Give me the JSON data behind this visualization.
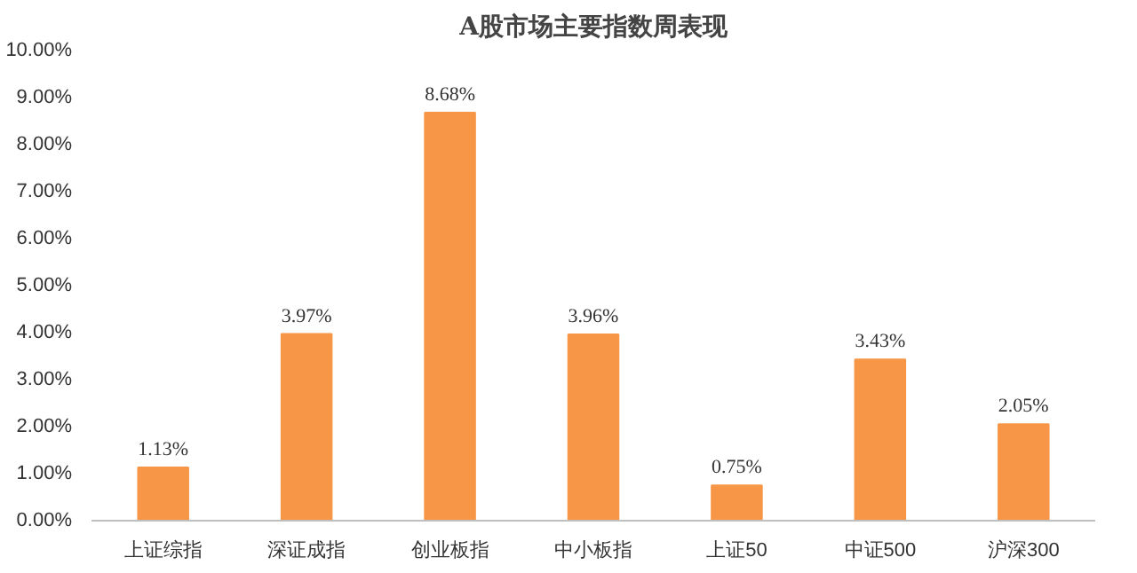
{
  "chart_data": {
    "type": "bar",
    "title": "A股市场主要指数周表现",
    "categories": [
      "上证综指",
      "深证成指",
      "创业板指",
      "中小板指",
      "上证50",
      "中证500",
      "沪深300"
    ],
    "values": [
      1.13,
      3.97,
      8.68,
      3.96,
      0.75,
      3.43,
      2.05
    ],
    "value_labels": [
      "1.13%",
      "3.97%",
      "8.68%",
      "3.96%",
      "0.75%",
      "3.43%",
      "2.05%"
    ],
    "color": "#f79646",
    "ylim": [
      0,
      10
    ],
    "yticks": [
      {
        "value": 0,
        "label": "0.00%"
      },
      {
        "value": 1,
        "label": "1.00%"
      },
      {
        "value": 2,
        "label": "2.00%"
      },
      {
        "value": 3,
        "label": "3.00%"
      },
      {
        "value": 4,
        "label": "4.00%"
      },
      {
        "value": 5,
        "label": "5.00%"
      },
      {
        "value": 6,
        "label": "6.00%"
      },
      {
        "value": 7,
        "label": "7.00%"
      },
      {
        "value": 8,
        "label": "8.00%"
      },
      {
        "value": 9,
        "label": "9.00%"
      },
      {
        "value": 10,
        "label": "10.00%"
      }
    ],
    "grid": false
  }
}
